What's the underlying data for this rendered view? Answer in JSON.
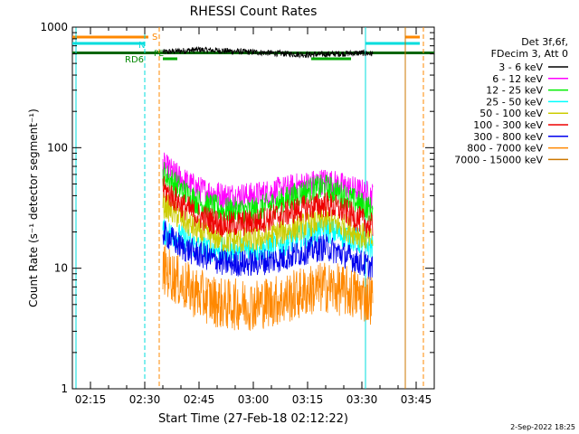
{
  "chart_data": {
    "type": "line",
    "title": "RHESSI Count Rates",
    "xlabel": "Start Time (27-Feb-18 02:12:22)",
    "ylabel": "Count Rate (s⁻¹ detector segment⁻¹)",
    "y_scale": "log",
    "xlim": [
      "02:10",
      "03:50"
    ],
    "ylim": [
      1,
      1000
    ],
    "x_ticks": [
      "02:15",
      "02:30",
      "02:45",
      "03:00",
      "03:15",
      "03:30",
      "03:45"
    ],
    "y_ticks": [
      "1",
      "10",
      "100",
      "1000"
    ],
    "legend_header": [
      "Det 3f,6f,",
      "FDecim 3, Att 0"
    ],
    "legend_position": "right",
    "footer": "2-Sep-2022 18:25",
    "flag_labels": {
      "s": "S",
      "n": "N",
      "rd": "RD6",
      "pe": "PE"
    },
    "series": [
      {
        "name": "3 - 6 keV",
        "color": "#000000",
        "points": [
          [
            "02:35",
            620
          ],
          [
            "02:45",
            650
          ],
          [
            "03:00",
            620
          ],
          [
            "03:15",
            590
          ],
          [
            "03:30",
            610
          ],
          [
            "03:33",
            600
          ]
        ]
      },
      {
        "name": "6 - 12 keV",
        "color": "#ff00ff",
        "points": [
          [
            "02:35",
            72
          ],
          [
            "02:40",
            55
          ],
          [
            "02:45",
            45
          ],
          [
            "02:52",
            40
          ],
          [
            "03:00",
            40
          ],
          [
            "03:08",
            45
          ],
          [
            "03:15",
            50
          ],
          [
            "03:20",
            53
          ],
          [
            "03:25",
            48
          ],
          [
            "03:33",
            40
          ]
        ]
      },
      {
        "name": "12 - 25 keV",
        "color": "#00ee00",
        "points": [
          [
            "02:35",
            62
          ],
          [
            "02:40",
            45
          ],
          [
            "02:45",
            35
          ],
          [
            "02:52",
            30
          ],
          [
            "03:00",
            30
          ],
          [
            "03:08",
            36
          ],
          [
            "03:15",
            44
          ],
          [
            "03:20",
            47
          ],
          [
            "03:25",
            40
          ],
          [
            "03:33",
            30
          ]
        ]
      },
      {
        "name": "25 - 50 keV",
        "color": "#00ffff",
        "points": [
          [
            "02:35",
            20
          ],
          [
            "02:40",
            18
          ],
          [
            "02:45",
            15
          ],
          [
            "02:52",
            14
          ],
          [
            "03:00",
            14
          ],
          [
            "03:08",
            16
          ],
          [
            "03:15",
            19
          ],
          [
            "03:20",
            21
          ],
          [
            "03:25",
            19
          ],
          [
            "03:33",
            15
          ]
        ]
      },
      {
        "name": "50 - 100 keV",
        "color": "#cccc00",
        "points": [
          [
            "02:35",
            34
          ],
          [
            "02:40",
            26
          ],
          [
            "02:45",
            20
          ],
          [
            "02:52",
            17
          ],
          [
            "03:00",
            17
          ],
          [
            "03:08",
            20
          ],
          [
            "03:15",
            23
          ],
          [
            "03:20",
            25
          ],
          [
            "03:25",
            22
          ],
          [
            "03:33",
            17
          ]
        ]
      },
      {
        "name": "100 - 300 keV",
        "color": "#ee0000",
        "points": [
          [
            "02:35",
            46
          ],
          [
            "02:40",
            34
          ],
          [
            "02:45",
            27
          ],
          [
            "02:52",
            23
          ],
          [
            "03:00",
            24
          ],
          [
            "03:08",
            28
          ],
          [
            "03:15",
            32
          ],
          [
            "03:20",
            34
          ],
          [
            "03:25",
            30
          ],
          [
            "03:33",
            22
          ]
        ]
      },
      {
        "name": "300 - 800 keV",
        "color": "#0000ee",
        "points": [
          [
            "02:35",
            20
          ],
          [
            "02:40",
            15
          ],
          [
            "02:45",
            13
          ],
          [
            "02:52",
            11
          ],
          [
            "03:00",
            11
          ],
          [
            "03:08",
            12
          ],
          [
            "03:15",
            14
          ],
          [
            "03:20",
            15
          ],
          [
            "03:25",
            13
          ],
          [
            "03:33",
            10
          ]
        ]
      },
      {
        "name": "800 - 7000 keV",
        "color": "#ff8800",
        "points": [
          [
            "02:35",
            10
          ],
          [
            "02:40",
            7.5
          ],
          [
            "02:45",
            6
          ],
          [
            "02:52",
            5
          ],
          [
            "03:00",
            5
          ],
          [
            "03:08",
            5.5
          ],
          [
            "03:15",
            6.5
          ],
          [
            "03:20",
            7
          ],
          [
            "03:25",
            6.5
          ],
          [
            "03:33",
            5.5
          ]
        ]
      },
      {
        "name": "7000 - 15000 keV",
        "color": "#cc7700",
        "points": []
      }
    ]
  }
}
